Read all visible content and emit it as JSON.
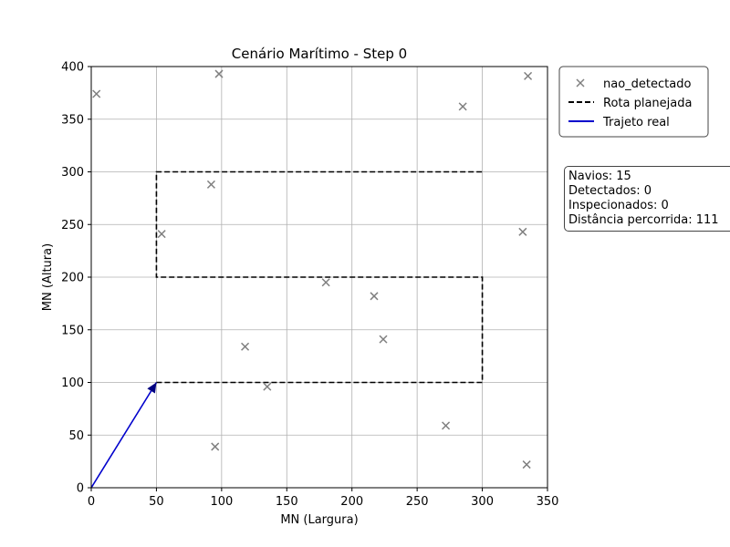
{
  "chart_data": {
    "type": "scatter",
    "title": "Cenário Marítimo - Step 0",
    "xlabel": "MN (Largura)",
    "ylabel": "MN (Altura)",
    "xlim": [
      0,
      350
    ],
    "ylim": [
      0,
      400
    ],
    "xticks": [
      0,
      50,
      100,
      150,
      200,
      250,
      300,
      350
    ],
    "yticks": [
      0,
      50,
      100,
      150,
      200,
      250,
      300,
      350,
      400
    ],
    "grid": true,
    "legend_position": "outside-top-right",
    "series": [
      {
        "name": "nao_detectado",
        "kind": "scatter",
        "marker": "x",
        "color": "#7f7f7f",
        "points": [
          [
            4,
            374
          ],
          [
            98,
            393
          ],
          [
            335,
            391
          ],
          [
            285,
            362
          ],
          [
            92,
            288
          ],
          [
            54,
            241
          ],
          [
            331,
            243
          ],
          [
            180,
            195
          ],
          [
            217,
            182
          ],
          [
            224,
            141
          ],
          [
            118,
            134
          ],
          [
            135,
            96
          ],
          [
            272,
            59
          ],
          [
            95,
            39
          ],
          [
            334,
            22
          ]
        ]
      },
      {
        "name": "Rota planejada",
        "kind": "line",
        "style": "dashed",
        "color": "#000000",
        "points": [
          [
            50,
            100
          ],
          [
            300,
            100
          ],
          [
            300,
            200
          ],
          [
            50,
            200
          ],
          [
            50,
            300
          ],
          [
            300,
            300
          ]
        ]
      },
      {
        "name": "Trajeto real",
        "kind": "line",
        "style": "solid",
        "color": "#0000cc",
        "points": [
          [
            0,
            0
          ],
          [
            50,
            100
          ]
        ],
        "arrow_end": true
      }
    ]
  },
  "info": {
    "navios": "Navios: 15",
    "detectados": "Detectados: 0",
    "inspecionados": "Inspecionados: 0",
    "distancia": "Distância percorrida: 111"
  }
}
